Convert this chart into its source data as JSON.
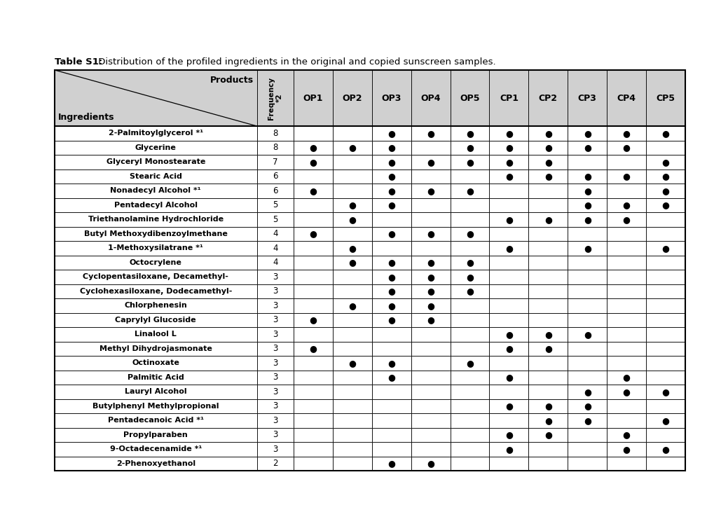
{
  "title_bold": "Table S1:",
  "title_normal": " Distribution of the profiled ingredients in the original and copied sunscreen samples.",
  "ingredients": [
    "2-Palmitoylglycerol *¹",
    "Glycerine",
    "Glyceryl Monostearate",
    "Stearic Acid",
    "Nonadecyl Alcohol *¹",
    "Pentadecyl Alcohol",
    "Triethanolamine Hydrochloride",
    "Butyl Methoxydibenzoylmethane",
    "1-Methoxysilatrane *¹",
    "Octocrylene",
    "Cyclopentasiloxane, Decamethyl-",
    "Cyclohexasiloxane, Dodecamethyl-",
    "Chlorphenesin",
    "Caprylyl Glucoside",
    "Linalool L",
    "Methyl Dihydrojasmonate",
    "Octinoxate",
    "Palmitic Acid",
    "Lauryl Alcohol",
    "Butylphenyl Methylpropional",
    "Pentadecanoic Acid *¹",
    "Propylparaben",
    "9-Octadecenamide *¹",
    "2-Phenoxyethanol"
  ],
  "frequencies": [
    8,
    8,
    7,
    6,
    6,
    5,
    5,
    4,
    4,
    4,
    3,
    3,
    3,
    3,
    3,
    3,
    3,
    3,
    3,
    3,
    3,
    3,
    3,
    2
  ],
  "dots": [
    [
      0,
      0,
      1,
      1,
      1,
      1,
      1,
      1,
      1,
      1
    ],
    [
      1,
      1,
      1,
      0,
      1,
      1,
      1,
      1,
      1,
      0
    ],
    [
      1,
      0,
      1,
      1,
      1,
      1,
      1,
      0,
      0,
      1
    ],
    [
      0,
      0,
      1,
      0,
      0,
      1,
      1,
      1,
      1,
      1
    ],
    [
      1,
      0,
      1,
      1,
      1,
      0,
      0,
      1,
      0,
      1
    ],
    [
      0,
      1,
      1,
      0,
      0,
      0,
      0,
      1,
      1,
      1
    ],
    [
      0,
      1,
      0,
      0,
      0,
      1,
      1,
      1,
      1,
      0
    ],
    [
      1,
      0,
      1,
      1,
      1,
      0,
      0,
      0,
      0,
      0
    ],
    [
      0,
      1,
      0,
      0,
      0,
      1,
      0,
      1,
      0,
      1
    ],
    [
      0,
      1,
      1,
      1,
      1,
      0,
      0,
      0,
      0,
      0
    ],
    [
      0,
      0,
      1,
      1,
      1,
      0,
      0,
      0,
      0,
      0
    ],
    [
      0,
      0,
      1,
      1,
      1,
      0,
      0,
      0,
      0,
      0
    ],
    [
      0,
      1,
      1,
      1,
      0,
      0,
      0,
      0,
      0,
      0
    ],
    [
      1,
      0,
      1,
      1,
      0,
      0,
      0,
      0,
      0,
      0
    ],
    [
      0,
      0,
      0,
      0,
      0,
      1,
      1,
      1,
      0,
      0
    ],
    [
      1,
      0,
      0,
      0,
      0,
      1,
      1,
      0,
      0,
      0
    ],
    [
      0,
      1,
      1,
      0,
      1,
      0,
      0,
      0,
      0,
      0
    ],
    [
      0,
      0,
      1,
      0,
      0,
      1,
      0,
      0,
      1,
      0
    ],
    [
      0,
      0,
      0,
      0,
      0,
      0,
      0,
      1,
      1,
      1
    ],
    [
      0,
      0,
      0,
      0,
      0,
      1,
      1,
      1,
      0,
      0
    ],
    [
      0,
      0,
      0,
      0,
      0,
      0,
      1,
      1,
      0,
      1
    ],
    [
      0,
      0,
      0,
      0,
      0,
      1,
      1,
      0,
      1,
      0
    ],
    [
      0,
      0,
      0,
      0,
      0,
      1,
      0,
      0,
      1,
      1
    ],
    [
      0,
      0,
      1,
      1,
      0,
      0,
      0,
      0,
      0,
      0
    ]
  ],
  "product_labels": [
    "OP1",
    "OP2",
    "OP3",
    "OP4",
    "OP5",
    "CP1",
    "CP2",
    "CP3",
    "CP4",
    "CP5"
  ],
  "header_bg": "#d0d0d0",
  "row_bg": "#ffffff",
  "border_color": "#000000",
  "title_fontsize": 9.5,
  "header_fontsize": 9.0,
  "ingr_fontsize": 8.0,
  "data_fontsize": 8.5,
  "dot_fontsize": 9.0,
  "col_widths_raw": [
    3.2,
    0.58,
    0.62,
    0.62,
    0.62,
    0.62,
    0.62,
    0.62,
    0.62,
    0.62,
    0.62,
    0.62
  ]
}
